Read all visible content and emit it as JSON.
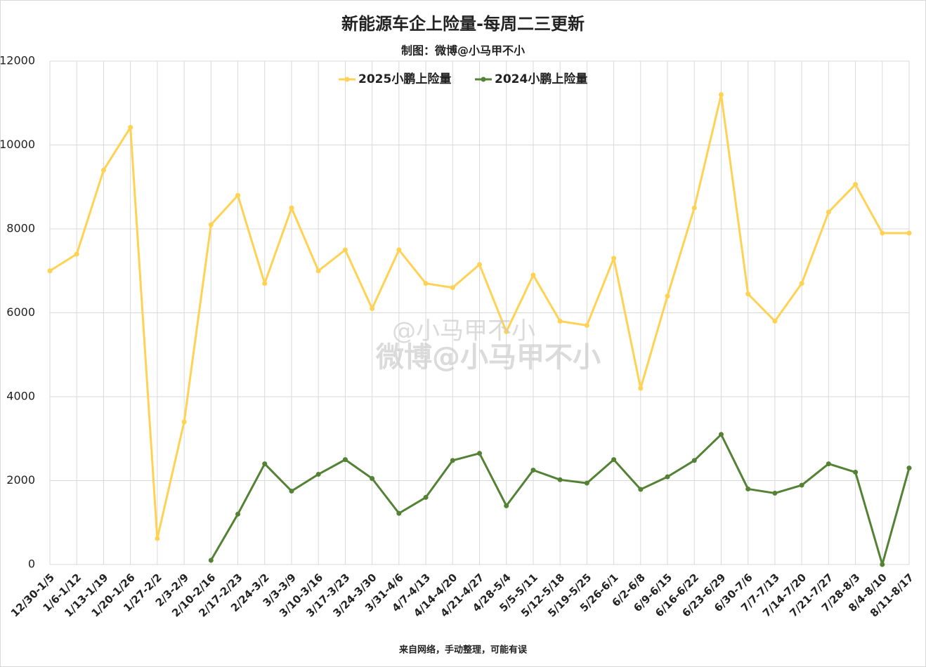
{
  "chart_data": {
    "type": "line",
    "title": "新能源车企上险量-每周二三更新",
    "subtitle": "制图：微博@小马甲不小",
    "footer": "来自网络，手动整理，可能有误",
    "watermark": [
      "@小马甲不小",
      "微博@小马甲不小"
    ],
    "categories": [
      "12/30-1/5",
      "1/6-1/12",
      "1/13-1/19",
      "1/20-1/26",
      "1/27-2/2",
      "2/3-2/9",
      "2/10-2/16",
      "2/17-2/23",
      "2/24-3/2",
      "3/3-3/9",
      "3/10-3/16",
      "3/17-3/23",
      "3/24-3/30",
      "3/31-4/6",
      "4/7-4/13",
      "4/14-4/20",
      "4/21-4/27",
      "4/28-5/4",
      "5/5-5/11",
      "5/12-5/18",
      "5/19-5/25",
      "5/26-6/1",
      "6/2-6/8",
      "6/9-6/15",
      "6/16-6/22",
      "6/23-6/29",
      "6/30-7/6",
      "7/7-7/13",
      "7/14-7/20",
      "7/21-7/27",
      "7/28-8/3",
      "8/4-8/10",
      "8/11-8/17"
    ],
    "series": [
      {
        "name": "2025小鹏上险量",
        "color": "#ffd254",
        "values": [
          7000,
          7400,
          9400,
          10420,
          620,
          3400,
          8100,
          8800,
          6700,
          8500,
          7000,
          7500,
          6100,
          7500,
          6700,
          6600,
          7150,
          5550,
          6900,
          5800,
          5700,
          7300,
          4200,
          6400,
          8500,
          11200,
          6450,
          5800,
          6700,
          8400,
          9060,
          7900,
          7900
        ]
      },
      {
        "name": "2024小鹏上险量",
        "color": "#548235",
        "values": [
          null,
          null,
          null,
          null,
          null,
          null,
          100,
          1200,
          2400,
          1750,
          2150,
          2500,
          2050,
          1220,
          1600,
          2480,
          2650,
          1400,
          2250,
          2020,
          1940,
          2500,
          1790,
          2090,
          2480,
          3100,
          1800,
          1700,
          1890,
          2400,
          2200,
          0,
          2300
        ]
      }
    ],
    "ylim": [
      0,
      12000
    ],
    "yticks": [
      0,
      2000,
      4000,
      6000,
      8000,
      10000,
      12000
    ],
    "grid": true,
    "legend": "top"
  }
}
